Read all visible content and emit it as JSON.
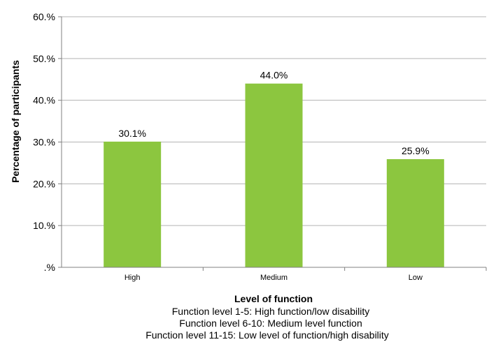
{
  "chart_data": {
    "type": "bar",
    "categories": [
      "High",
      "Medium",
      "Low"
    ],
    "values": [
      30.1,
      44.0,
      25.9
    ],
    "data_labels": [
      "30.1%",
      "44.0%",
      "25.9%"
    ],
    "bar_color": "#8cc63f",
    "ylim": [
      0,
      60
    ],
    "yticks": [
      0,
      10,
      20,
      30,
      40,
      50,
      60
    ],
    "ytick_labels": [
      ".%",
      "10.%",
      "20.%",
      "30.%",
      "40.%",
      "50.%",
      "60.%"
    ],
    "ylabel": "Percentage of participants",
    "xlabel": "Level of function",
    "notes": [
      "Function level 1-5: High function/low disability",
      "Function level 6-10: Medium level function",
      "Function level 11-15: Low level of function/high disability"
    ],
    "grid": true,
    "legend": "none"
  }
}
